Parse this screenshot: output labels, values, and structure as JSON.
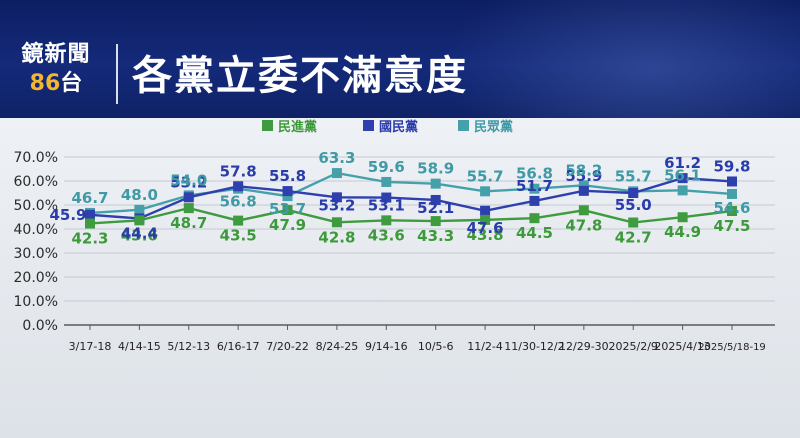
{
  "header": {
    "logo_line1": "鏡新聞",
    "logo_num": "86",
    "logo_suffix": "台",
    "title": "各黨立委不滿意度"
  },
  "chart_data": {
    "type": "line",
    "title": "各黨立委不滿意度",
    "categories": [
      "3/17-18",
      "4/14-15",
      "5/12-13",
      "6/16-17",
      "7/20-22",
      "8/24-25",
      "9/14-16",
      "10/5-6",
      "11/2-4",
      "11/30-12/2",
      "12/29-30",
      "2025/2/9",
      "2025/4/13",
      "2025/5/18-19"
    ],
    "series": [
      {
        "name": "民進黨",
        "color": "#3f9b3f",
        "label_color": "#3d9a3b",
        "values": [
          42.3,
          43.6,
          48.7,
          43.5,
          47.9,
          42.8,
          43.6,
          43.3,
          43.8,
          44.5,
          47.8,
          42.7,
          44.9,
          47.5
        ]
      },
      {
        "name": "國民黨",
        "color": "#2e3fae",
        "label_color": "#2a3caa",
        "values": [
          45.9,
          44.4,
          53.2,
          57.8,
          55.8,
          53.2,
          53.1,
          52.1,
          47.6,
          51.7,
          55.9,
          55.0,
          61.2,
          59.8
        ]
      },
      {
        "name": "民眾黨",
        "color": "#45a0aa",
        "label_color": "#3f9aa6",
        "values": [
          46.7,
          48.0,
          54.0,
          56.8,
          53.7,
          63.3,
          59.6,
          58.9,
          55.7,
          56.8,
          58.2,
          55.7,
          56.1,
          54.6
        ]
      }
    ],
    "yticks": [
      "0.0%",
      "10.0%",
      "20.0%",
      "30.0%",
      "40.0%",
      "50.0%",
      "60.0%",
      "70.0%"
    ],
    "ylim": [
      0,
      70
    ],
    "grid": true,
    "legend_position": "top-center"
  }
}
